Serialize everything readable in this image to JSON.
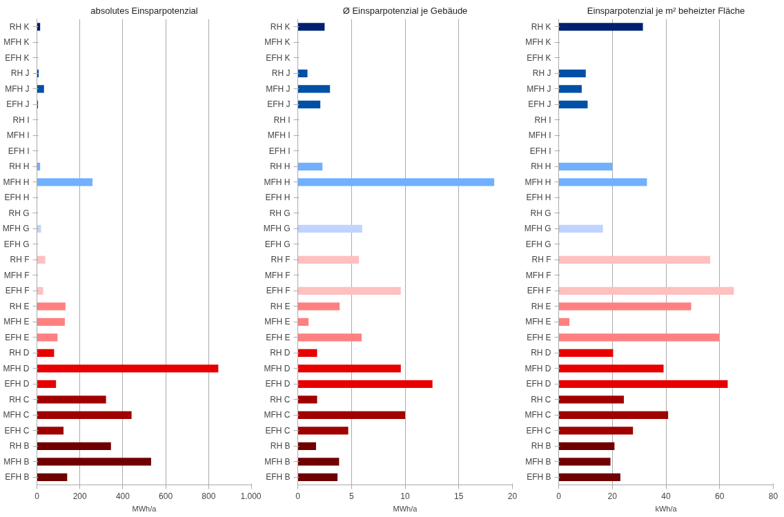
{
  "chart_data": [
    {
      "type": "bar",
      "orientation": "horizontal",
      "title": "absolutes Einsparpotenzial",
      "xlabel": "MWh/a",
      "grid": "x",
      "categories": [
        "RH K",
        "MFH K",
        "EFH K",
        "RH J",
        "MFH J",
        "EFH J",
        "RH I",
        "MFH I",
        "EFH I",
        "RH H",
        "MFH H",
        "EFH H",
        "RH G",
        "MFH G",
        "EFH G",
        "RH F",
        "MFH F",
        "EFH F",
        "RH E",
        "MFH E",
        "EFH E",
        "RH D",
        "MFH D",
        "EFH D",
        "RH C",
        "MFH C",
        "EFH C",
        "RH B",
        "MFH B",
        "EFH B"
      ],
      "values": [
        15,
        null,
        null,
        8,
        33,
        5,
        null,
        null,
        null,
        15,
        259,
        null,
        null,
        19,
        null,
        39,
        null,
        29,
        133,
        130,
        96,
        80,
        845,
        89,
        322,
        441,
        124,
        345,
        532,
        141
      ],
      "colors": [
        "#002070",
        "#002070",
        "#002070",
        "#0050a8",
        "#0050a8",
        "#0050a8",
        "#0050a8",
        "#0050a8",
        "#0050a8",
        "#70b0ff",
        "#70b0ff",
        "#70b0ff",
        "#c0d4ff",
        "#c0d4ff",
        "#c0d4ff",
        "#ffc0c0",
        "#ffc0c0",
        "#ffc0c0",
        "#ff8080",
        "#ff8080",
        "#ff8080",
        "#e80000",
        "#e80000",
        "#e80000",
        "#a00000",
        "#a00000",
        "#a00000",
        "#700000",
        "#700000",
        "#700000"
      ],
      "xlim": [
        0,
        1000
      ],
      "xticks": [
        0,
        200,
        400,
        600,
        800,
        {
          "value": 1000,
          "label": "1.000"
        }
      ]
    },
    {
      "type": "bar",
      "orientation": "horizontal",
      "title": "Ø Einsparpotenzial je Gebäude",
      "xlabel": "MWh/a",
      "grid": "x",
      "categories": [
        "RH K",
        "MFH K",
        "EFH K",
        "RH J",
        "MFH J",
        "EFH J",
        "RH I",
        "MFH I",
        "EFH I",
        "RH H",
        "MFH H",
        "EFH H",
        "RH G",
        "MFH G",
        "EFH G",
        "RH F",
        "MFH F",
        "EFH F",
        "RH E",
        "MFH E",
        "EFH E",
        "RH D",
        "MFH D",
        "EFH D",
        "RH C",
        "MFH C",
        "EFH C",
        "RH B",
        "MFH B",
        "EFH B"
      ],
      "values": [
        2.5,
        null,
        null,
        0.9,
        3.0,
        2.1,
        null,
        null,
        null,
        2.3,
        18.3,
        null,
        null,
        6.0,
        null,
        5.7,
        null,
        9.6,
        3.9,
        1.0,
        5.95,
        1.8,
        9.6,
        12.55,
        1.8,
        10.0,
        4.7,
        1.7,
        3.85,
        3.7
      ],
      "colors": [
        "#002070",
        "#002070",
        "#002070",
        "#0050a8",
        "#0050a8",
        "#0050a8",
        "#0050a8",
        "#0050a8",
        "#0050a8",
        "#70b0ff",
        "#70b0ff",
        "#70b0ff",
        "#c0d4ff",
        "#c0d4ff",
        "#c0d4ff",
        "#ffc0c0",
        "#ffc0c0",
        "#ffc0c0",
        "#ff8080",
        "#ff8080",
        "#ff8080",
        "#e80000",
        "#e80000",
        "#e80000",
        "#a00000",
        "#a00000",
        "#a00000",
        "#700000",
        "#700000",
        "#700000"
      ],
      "xlim": [
        0,
        20
      ],
      "xticks": [
        0,
        5,
        10,
        15,
        20
      ]
    },
    {
      "type": "bar",
      "orientation": "horizontal",
      "title": "Einsparpotenzial je m² beheizter Fläche",
      "xlabel": "kWh/a",
      "grid": "x",
      "categories": [
        "RH K",
        "MFH K",
        "EFH K",
        "RH J",
        "MFH J",
        "EFH J",
        "RH I",
        "MFH I",
        "EFH I",
        "RH H",
        "MFH H",
        "EFH H",
        "RH G",
        "MFH G",
        "EFH G",
        "RH F",
        "MFH F",
        "EFH F",
        "RH E",
        "MFH E",
        "EFH E",
        "RH D",
        "MFH D",
        "EFH D",
        "RH C",
        "MFH C",
        "EFH C",
        "RH B",
        "MFH B",
        "EFH B"
      ],
      "values": [
        31.4,
        null,
        null,
        10.1,
        8.6,
        10.8,
        null,
        null,
        null,
        20,
        32.9,
        null,
        null,
        16.5,
        null,
        56.5,
        null,
        65.3,
        49.4,
        4,
        59.8,
        20.3,
        39.1,
        63,
        24.3,
        40.8,
        27.7,
        20.8,
        19.3,
        23
      ],
      "colors": [
        "#002070",
        "#002070",
        "#002070",
        "#0050a8",
        "#0050a8",
        "#0050a8",
        "#0050a8",
        "#0050a8",
        "#0050a8",
        "#70b0ff",
        "#70b0ff",
        "#70b0ff",
        "#c0d4ff",
        "#c0d4ff",
        "#c0d4ff",
        "#ffc0c0",
        "#ffc0c0",
        "#ffc0c0",
        "#ff8080",
        "#ff8080",
        "#ff8080",
        "#e80000",
        "#e80000",
        "#e80000",
        "#a00000",
        "#a00000",
        "#a00000",
        "#700000",
        "#700000",
        "#700000"
      ],
      "xlim": [
        0,
        80
      ],
      "xticks": [
        0,
        20,
        40,
        60,
        80
      ]
    }
  ]
}
